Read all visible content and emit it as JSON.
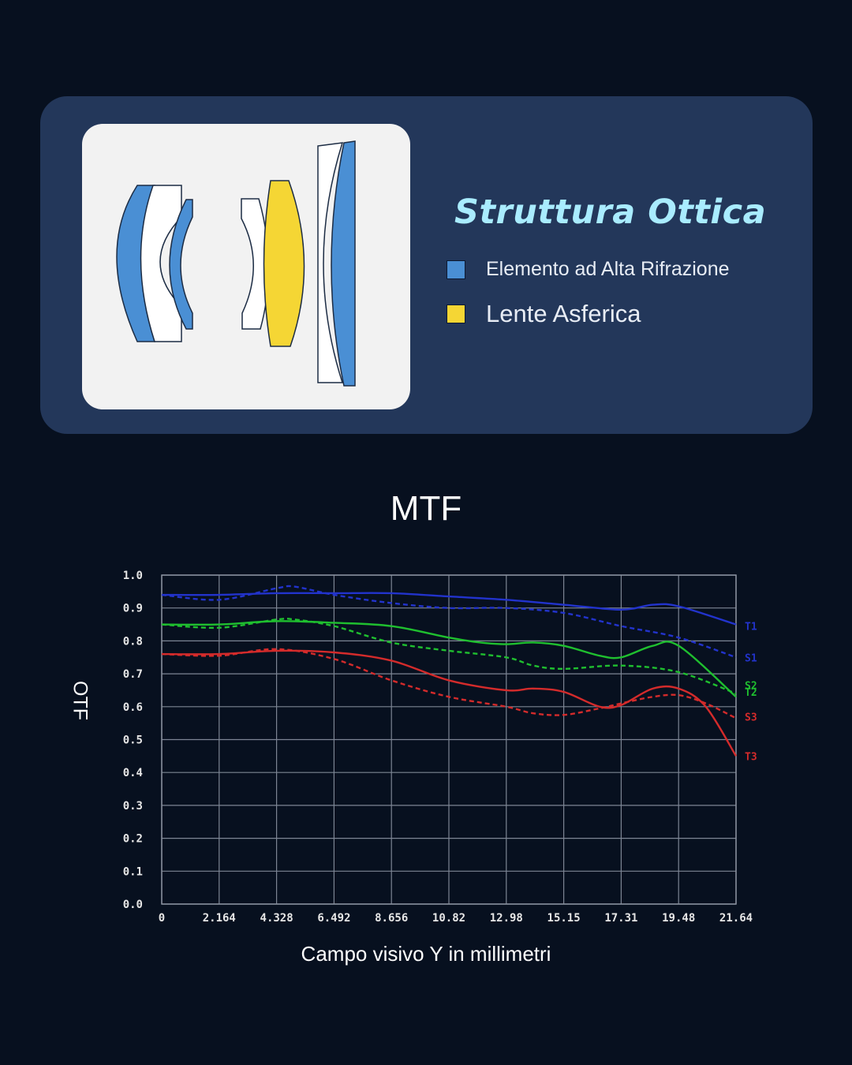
{
  "optics": {
    "title": "Struttura Ottica",
    "legend": [
      {
        "label": "Elemento ad Alta Rifrazione",
        "color": "#4a8fd4"
      },
      {
        "label": "Lente Asferica",
        "color": "#f5d634"
      }
    ]
  },
  "chart_data": {
    "type": "line",
    "title": "MTF",
    "xlabel": "Campo visivo Y in millimetri",
    "ylabel": "OTF",
    "xlim": [
      0,
      21.64
    ],
    "ylim": [
      0,
      1.0
    ],
    "x_ticks": [
      "0",
      "2.164",
      "4.328",
      "6.492",
      "8.656",
      "10.82",
      "12.98",
      "15.15",
      "17.31",
      "19.48",
      "21.64"
    ],
    "y_ticks": [
      "0.0",
      "0.1",
      "0.2",
      "0.3",
      "0.4",
      "0.5",
      "0.6",
      "0.7",
      "0.8",
      "0.9",
      "1.0"
    ],
    "grid": true,
    "series": [
      {
        "name": "T1",
        "color": "#2233cc",
        "dash": false,
        "x": [
          0,
          2.164,
          4.328,
          6.492,
          8.656,
          10.82,
          12.98,
          15.15,
          17.31,
          18.5,
          19.48,
          21.64
        ],
        "y": [
          0.94,
          0.94,
          0.945,
          0.945,
          0.945,
          0.935,
          0.925,
          0.91,
          0.895,
          0.91,
          0.905,
          0.85
        ]
      },
      {
        "name": "S1",
        "color": "#2233cc",
        "dash": true,
        "x": [
          0,
          2.164,
          4.328,
          5.0,
          6.492,
          8.656,
          10.82,
          12.98,
          15.15,
          17.31,
          19.48,
          21.64
        ],
        "y": [
          0.94,
          0.925,
          0.96,
          0.965,
          0.94,
          0.915,
          0.9,
          0.9,
          0.885,
          0.845,
          0.81,
          0.75
        ]
      },
      {
        "name": "T2",
        "color": "#1fbf2f",
        "dash": false,
        "x": [
          0,
          2.164,
          4.328,
          6.492,
          8.656,
          10.82,
          12.0,
          12.98,
          14.0,
          15.15,
          16.5,
          17.31,
          18.5,
          19.48,
          21.64
        ],
        "y": [
          0.85,
          0.85,
          0.86,
          0.855,
          0.845,
          0.81,
          0.795,
          0.79,
          0.795,
          0.785,
          0.755,
          0.75,
          0.785,
          0.785,
          0.63
        ]
      },
      {
        "name": "S2",
        "color": "#1fbf2f",
        "dash": true,
        "x": [
          0,
          2.164,
          4.328,
          5.0,
          6.492,
          8.656,
          10.82,
          12.98,
          14.0,
          15.15,
          17.31,
          19.48,
          21.64
        ],
        "y": [
          0.85,
          0.84,
          0.865,
          0.865,
          0.845,
          0.795,
          0.77,
          0.75,
          0.725,
          0.715,
          0.725,
          0.705,
          0.64
        ]
      },
      {
        "name": "S3",
        "color": "#d42b2b",
        "dash": true,
        "x": [
          0,
          2.164,
          4.328,
          6.492,
          8.656,
          10.82,
          12.98,
          14.0,
          15.15,
          16.5,
          17.31,
          18.5,
          19.48,
          20.5,
          21.64
        ],
        "y": [
          0.76,
          0.755,
          0.775,
          0.745,
          0.68,
          0.63,
          0.6,
          0.58,
          0.575,
          0.595,
          0.61,
          0.63,
          0.635,
          0.61,
          0.565
        ]
      },
      {
        "name": "T3",
        "color": "#d42b2b",
        "dash": false,
        "x": [
          0,
          2.164,
          4.328,
          6.492,
          8.656,
          10.82,
          12.98,
          14.0,
          15.15,
          16.5,
          17.31,
          18.5,
          19.48,
          20.5,
          21.64
        ],
        "y": [
          0.76,
          0.76,
          0.77,
          0.765,
          0.74,
          0.68,
          0.65,
          0.655,
          0.645,
          0.6,
          0.605,
          0.655,
          0.655,
          0.6,
          0.45
        ]
      }
    ],
    "end_labels": [
      {
        "text": "T1",
        "y": 0.845,
        "color": "#2233cc"
      },
      {
        "text": "S1",
        "y": 0.75,
        "color": "#2233cc"
      },
      {
        "text": "S2",
        "y": 0.665,
        "color": "#1fbf2f"
      },
      {
        "text": "T2",
        "y": 0.645,
        "color": "#1fbf2f"
      },
      {
        "text": "S3",
        "y": 0.57,
        "color": "#d42b2b"
      },
      {
        "text": "T3",
        "y": 0.45,
        "color": "#d42b2b"
      }
    ]
  }
}
